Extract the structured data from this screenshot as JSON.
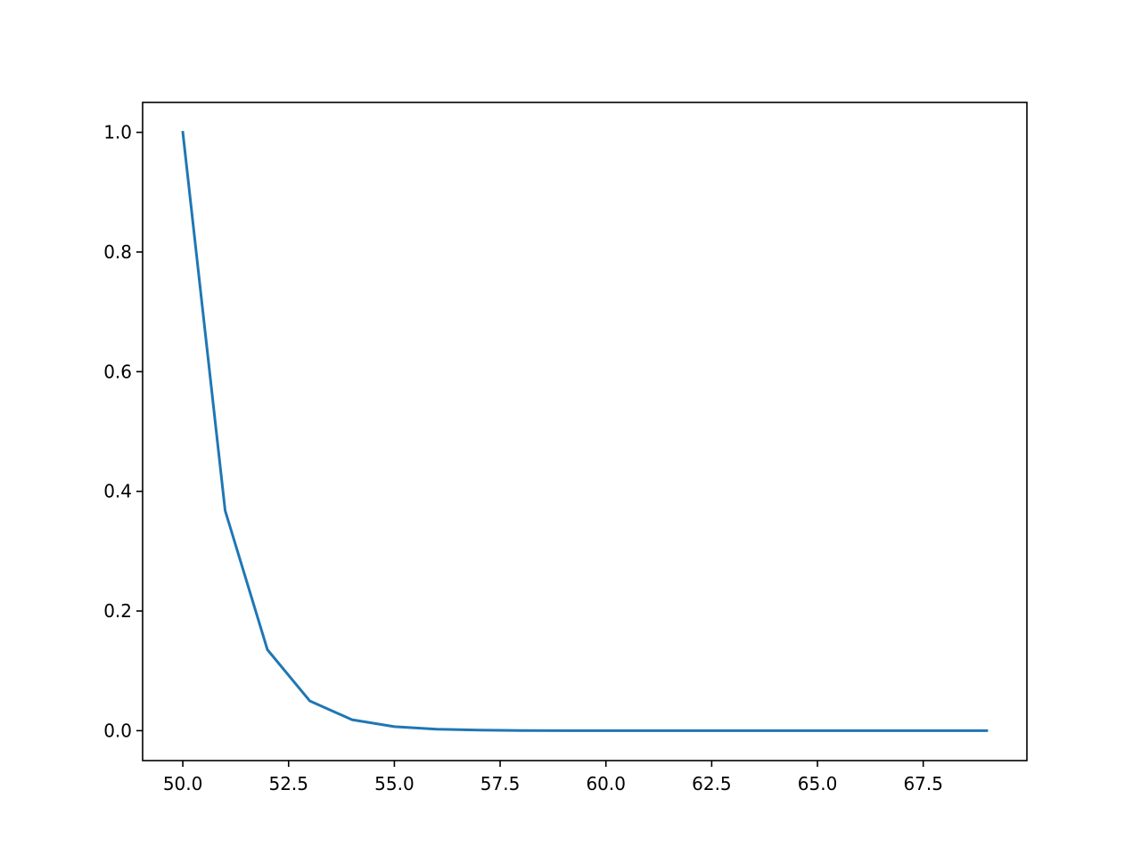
{
  "chart_data": {
    "type": "line",
    "title": "",
    "xlabel": "",
    "ylabel": "",
    "xlim": [
      49.05,
      69.95
    ],
    "ylim": [
      -0.05,
      1.05
    ],
    "grid": false,
    "x_ticks": [
      "50.0",
      "52.5",
      "55.0",
      "57.5",
      "60.0",
      "62.5",
      "65.0",
      "67.5"
    ],
    "y_ticks": [
      "0.0",
      "0.2",
      "0.4",
      "0.6",
      "0.8",
      "1.0"
    ],
    "series": [
      {
        "color": "#1f77b4",
        "x": [
          50,
          51,
          52,
          53,
          54,
          55,
          56,
          57,
          58,
          59,
          60,
          61,
          62,
          63,
          64,
          65,
          66,
          67,
          68,
          69
        ],
        "y": [
          1.0,
          0.3679,
          0.1353,
          0.0498,
          0.0183,
          0.0067,
          0.0025,
          0.0009,
          0.0003,
          0.0001,
          0.0,
          0.0,
          0.0,
          0.0,
          0.0,
          0.0,
          0.0,
          0.0,
          0.0,
          0.0
        ]
      }
    ]
  }
}
